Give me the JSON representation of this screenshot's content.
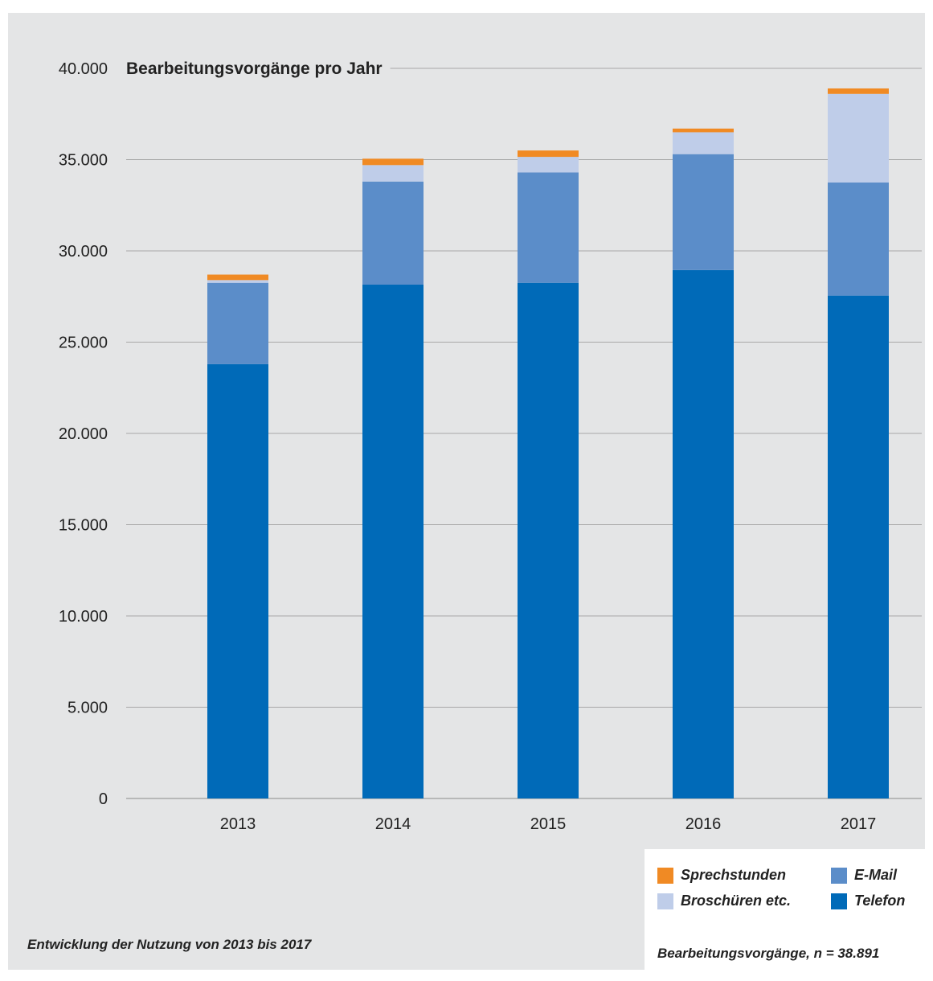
{
  "chart_data": {
    "type": "bar",
    "stacked": true,
    "title": "Bearbeitungsvorgänge pro Jahr",
    "categories": [
      "2013",
      "2014",
      "2015",
      "2016",
      "2017"
    ],
    "series": [
      {
        "name": "Telefon",
        "color": "#006ab8",
        "values": [
          23800,
          28150,
          28250,
          28950,
          27550
        ]
      },
      {
        "name": "E-Mail",
        "color": "#5b8dc9",
        "values": [
          4450,
          5650,
          6050,
          6350,
          6200
        ]
      },
      {
        "name": "Broschüren etc.",
        "color": "#bfcde9",
        "values": [
          150,
          900,
          850,
          1200,
          4850
        ]
      },
      {
        "name": "Sprechstunden",
        "color": "#f08a24",
        "values": [
          300,
          350,
          350,
          200,
          300
        ]
      }
    ],
    "ylim": [
      0,
      40000
    ],
    "yticks": [
      0,
      5000,
      10000,
      15000,
      20000,
      25000,
      30000,
      35000,
      40000
    ],
    "ytick_labels": [
      "0",
      "5.000",
      "10.000",
      "15.000",
      "20.000",
      "25.000",
      "30.000",
      "35.000",
      "40.000"
    ],
    "grid": true,
    "legend_position": "bottom-right"
  },
  "legend": {
    "items": [
      {
        "label": "Sprechstunden",
        "color": "#f08a24"
      },
      {
        "label": "E-Mail",
        "color": "#5b8dc9"
      },
      {
        "label": "Broschüren etc.",
        "color": "#bfcde9"
      },
      {
        "label": "Telefon",
        "color": "#006ab8"
      }
    ],
    "note": "Bearbeitungsvorgänge, n = 38.891"
  },
  "caption": "Entwicklung der Nutzung von 2013 bis 2017"
}
